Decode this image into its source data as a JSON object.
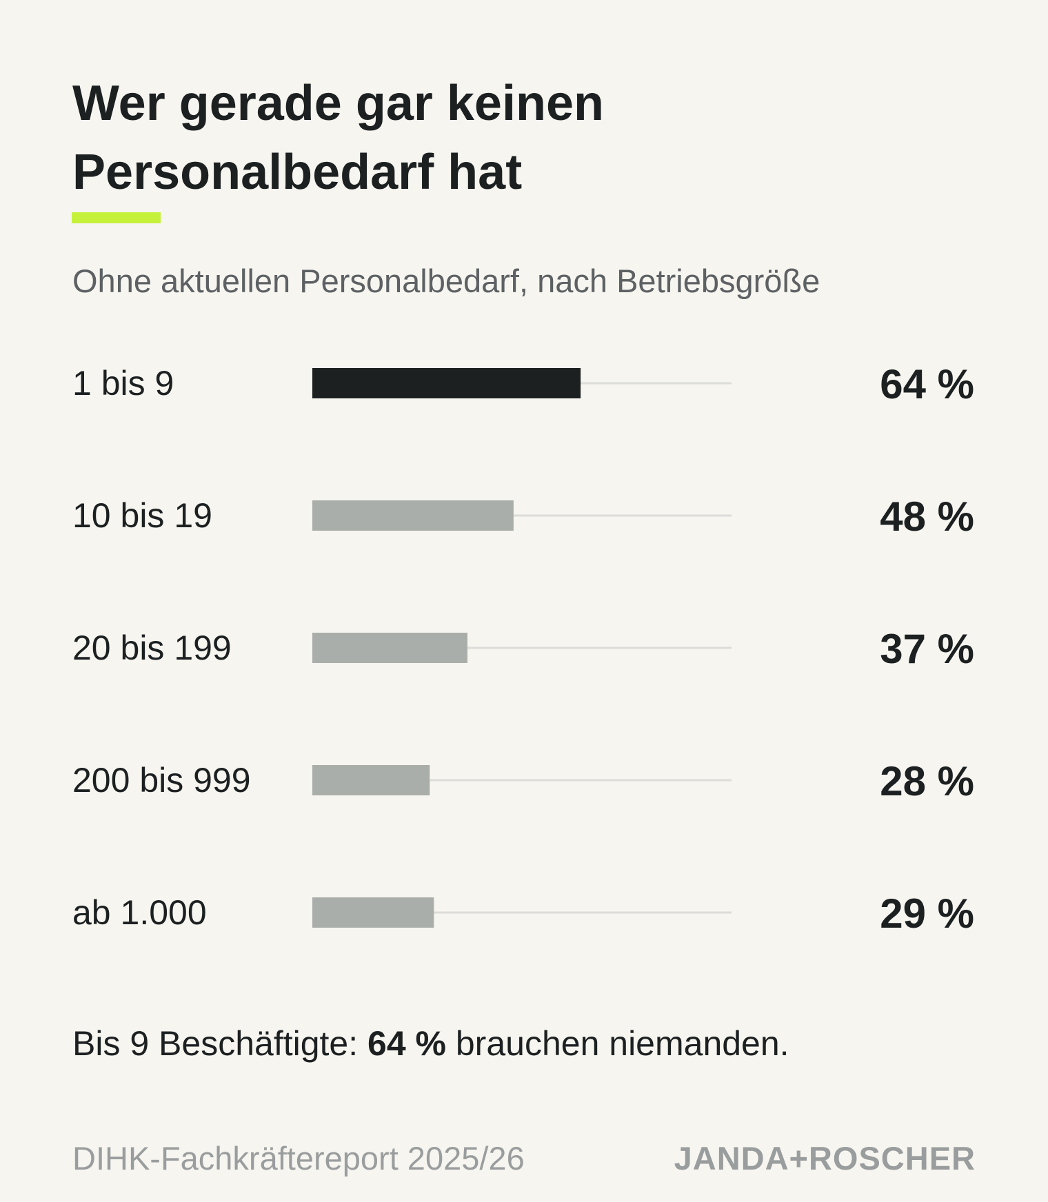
{
  "title_line1": "Wer gerade gar keinen",
  "title_line2": "Personalbedarf hat",
  "subtitle": "Ohne aktuellen Personalbedarf, nach Betriebsgröße",
  "footnote": {
    "prefix": "Bis 9 Beschäftigte: ",
    "highlight": "64 %",
    "suffix": " brauchen niemanden."
  },
  "source": "DIHK-Fachkräftereport 2025/26",
  "brand": "JANDA+ROSCHER",
  "colors": {
    "background": "#f6f5f0",
    "accent": "#c6f13a",
    "highlight_bar": "#1c2021",
    "bar": "#aaaeaa",
    "track": "#dcdcd8",
    "text": "#1c2021",
    "muted": "#9a9d9d"
  },
  "chart_data": {
    "type": "bar",
    "orientation": "horizontal",
    "categories": [
      "1 bis 9",
      "10 bis 19",
      "20 bis 199",
      "200 bis 999",
      "ab 1.000"
    ],
    "values": [
      64,
      48,
      37,
      28,
      29
    ],
    "value_labels": [
      "64 %",
      "48 %",
      "37 %",
      "28 %",
      "29 %"
    ],
    "unit": "%",
    "xlim": [
      0,
      100
    ],
    "highlight_index": 0,
    "grid": false,
    "legend": "none"
  }
}
